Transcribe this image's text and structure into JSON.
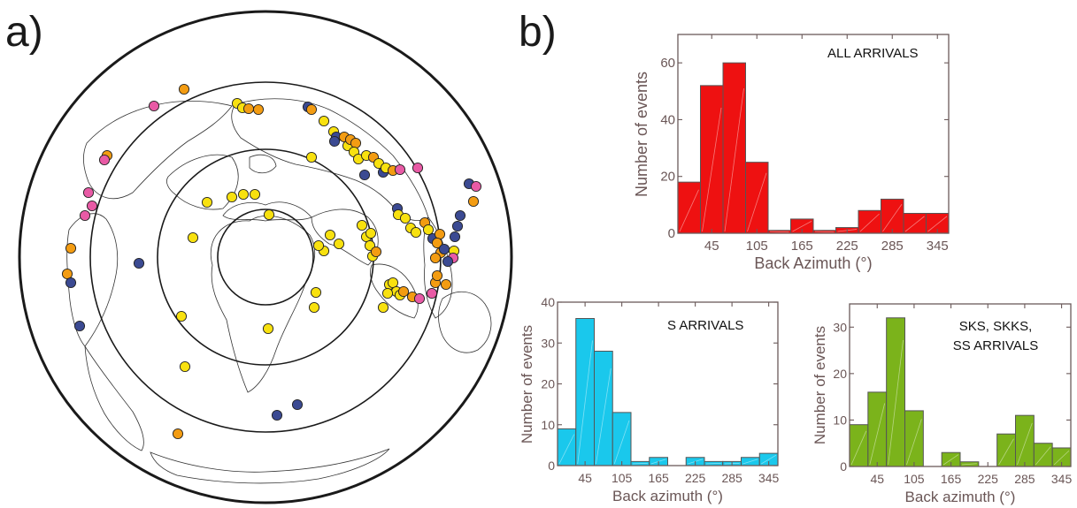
{
  "panel_labels": {
    "a": "a)",
    "b": "b)"
  },
  "map": {
    "ring_count": 3,
    "colors": {
      "orange": "#f39c12",
      "pink": "#e85aa5",
      "navy": "#3b4a92",
      "yellow": "#f8e10f"
    }
  },
  "chart_data": [
    {
      "type": "bar",
      "annotation": "ALL ARRIVALS",
      "xlabel": "Back Azimuth (°)",
      "ylabel": "Number of events",
      "bin_width": 30,
      "bin_centers": [
        15,
        45,
        75,
        105,
        135,
        165,
        195,
        225,
        255,
        285,
        315,
        345
      ],
      "values": [
        18,
        52,
        60,
        25,
        1,
        5,
        1,
        2,
        8,
        12,
        7,
        7
      ],
      "xticks": [
        45,
        105,
        165,
        225,
        285,
        345
      ],
      "xlim": [
        0,
        360
      ],
      "ylim": [
        0,
        70
      ],
      "yticks": [
        0,
        20,
        40,
        60
      ],
      "color": "#ee1111"
    },
    {
      "type": "bar",
      "annotation": "S ARRIVALS",
      "xlabel": "Back azimuth (°)",
      "ylabel": "Number of events",
      "bin_width": 30,
      "bin_centers": [
        15,
        45,
        75,
        105,
        135,
        165,
        195,
        225,
        255,
        285,
        315,
        345
      ],
      "values": [
        9,
        36,
        28,
        13,
        1,
        2,
        0,
        2,
        1,
        1,
        2,
        3
      ],
      "xticks": [
        45,
        105,
        165,
        225,
        285,
        345
      ],
      "xlim": [
        0,
        360
      ],
      "ylim": [
        0,
        40
      ],
      "yticks": [
        0,
        10,
        20,
        30,
        40
      ],
      "color": "#1ac8ec"
    },
    {
      "type": "bar",
      "annotation": [
        "SKS, SKKS,",
        "SS ARRIVALS"
      ],
      "xlabel": "Back azimuth (°)",
      "ylabel": "Number of events",
      "bin_width": 30,
      "bin_centers": [
        15,
        45,
        75,
        105,
        135,
        165,
        195,
        225,
        255,
        285,
        315,
        345
      ],
      "values": [
        9,
        16,
        32,
        12,
        0,
        3,
        1,
        0,
        7,
        11,
        5,
        4
      ],
      "xticks": [
        45,
        105,
        165,
        225,
        285,
        345
      ],
      "xlim": [
        0,
        360
      ],
      "ylim": [
        0,
        35
      ],
      "yticks": [
        0,
        10,
        20,
        30
      ],
      "color": "#7bb31b"
    }
  ]
}
